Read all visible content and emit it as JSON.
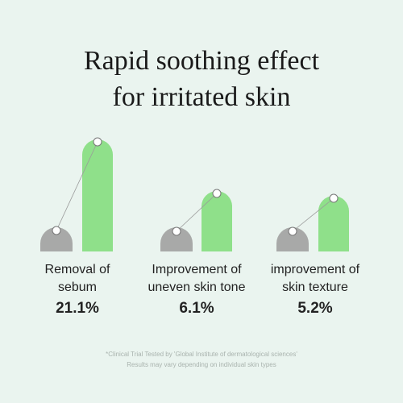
{
  "header": {
    "title": [
      "Rapid soothing effect",
      "for irritated skin"
    ]
  },
  "items": [
    {
      "label": [
        "Removal of",
        "sebum"
      ],
      "value": "21.1%"
    },
    {
      "label": [
        "Improvement of",
        "uneven skin tone"
      ],
      "value": "6.1%"
    },
    {
      "label": [
        "improvement of",
        "skin texture"
      ],
      "value": "5.2%"
    }
  ],
  "footnote": [
    "*Clinical Trial Tested by 'Global Institute of dermatological sciences'",
    "Results may vary depending on individual skin types"
  ]
}
